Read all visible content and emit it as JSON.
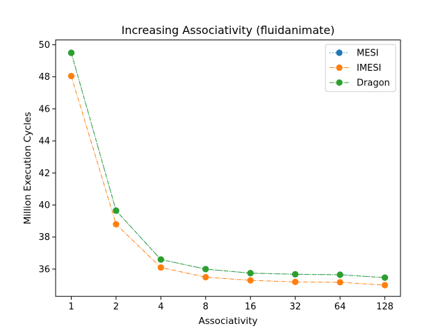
{
  "chart_data": {
    "type": "line",
    "title": "Increasing Associativity (fluidanimate)",
    "xlabel": "Associativity",
    "ylabel": "Million Execution Cycles",
    "categories": [
      "1",
      "2",
      "4",
      "8",
      "16",
      "32",
      "64",
      "128"
    ],
    "ylim": [
      34.3,
      50.3
    ],
    "yticks": [
      36,
      38,
      40,
      42,
      44,
      46,
      48,
      50
    ],
    "grid": false,
    "legend_position": "top-right",
    "series": [
      {
        "name": "MESI",
        "color": "#1f77b4",
        "linestyle": "dotted",
        "values": [
          49.5,
          39.65,
          36.6,
          36.0,
          35.75,
          35.68,
          35.65,
          35.47
        ]
      },
      {
        "name": "IMESI",
        "color": "#ff7f0e",
        "linestyle": "dashdot",
        "values": [
          48.05,
          38.8,
          36.1,
          35.5,
          35.3,
          35.2,
          35.18,
          35.0
        ]
      },
      {
        "name": "Dragon",
        "color": "#2ca02c",
        "linestyle": "dashdot",
        "values": [
          49.5,
          39.65,
          36.6,
          36.0,
          35.75,
          35.68,
          35.65,
          35.47
        ]
      }
    ]
  }
}
